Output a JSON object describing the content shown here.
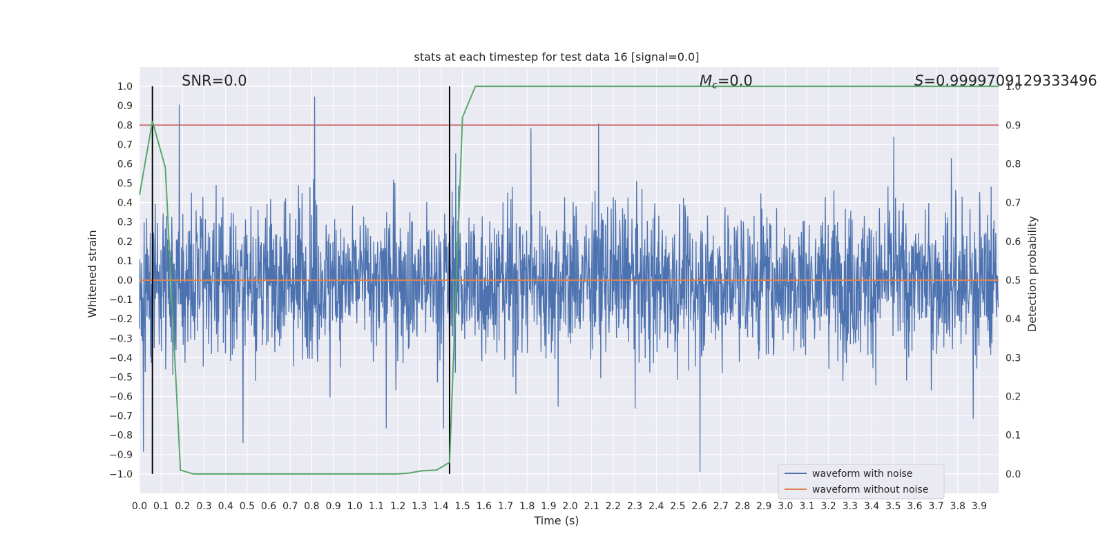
{
  "chart_data": {
    "type": "line",
    "title": "stats at each timestep for test data 16 [signal=0.0]",
    "xlabel": "Time (s)",
    "ylabel_left": "Whitened strain",
    "ylabel_right": "Detection probability",
    "xlim": [
      0.0,
      3.99
    ],
    "ylim_left": [
      -1.1,
      1.1
    ],
    "ylim_right": [
      -0.05,
      1.05
    ],
    "x_ticks": [
      "0.0",
      "0.1",
      "0.2",
      "0.3",
      "0.4",
      "0.5",
      "0.6",
      "0.7",
      "0.8",
      "0.9",
      "1.0",
      "1.1",
      "1.2",
      "1.3",
      "1.4",
      "1.5",
      "1.6",
      "1.7",
      "1.8",
      "1.9",
      "2.0",
      "2.1",
      "2.2",
      "2.3",
      "2.4",
      "2.5",
      "2.6",
      "2.7",
      "2.8",
      "2.9",
      "3.0",
      "3.1",
      "3.2",
      "3.3",
      "3.4",
      "3.5",
      "3.6",
      "3.7",
      "3.8",
      "3.9"
    ],
    "y_ticks_left": [
      "1.0",
      "0.9",
      "0.8",
      "0.7",
      "0.6",
      "0.5",
      "0.4",
      "0.3",
      "0.2",
      "0.1",
      "0.0",
      "−0.1",
      "−0.2",
      "−0.3",
      "−0.4",
      "−0.5",
      "−0.6",
      "−0.7",
      "−0.8",
      "−0.9",
      "−1.0"
    ],
    "y_ticks_right": [
      "1.0",
      "0.9",
      "0.8",
      "0.7",
      "0.6",
      "0.5",
      "0.4",
      "0.3",
      "0.2",
      "0.1",
      "0.0"
    ],
    "annotations": {
      "snr": "SNR=0.0",
      "mc_symbol": "M",
      "mc_sub": "c",
      "mc_value": "=0.0",
      "s_symbol": "S",
      "s_value": "=0.9999709129333496"
    },
    "threshold_probability": 0.9,
    "vertical_markers": [
      0.06,
      1.44
    ],
    "series": [
      {
        "name": "waveform with noise",
        "color": "#4c72b0",
        "axis": "left",
        "description": "noisy whitened strain sampled across 0-4 s, amplitude roughly within -1 to 1"
      },
      {
        "name": "waveform without noise",
        "color": "#dd8452",
        "axis": "left",
        "x": [
          0.0,
          3.99
        ],
        "y": [
          0.0,
          0.0
        ]
      },
      {
        "name": "detection probability",
        "color": "#55a868",
        "axis": "right",
        "x": [
          0.0,
          0.06,
          0.12,
          0.19,
          0.25,
          0.31,
          0.38,
          0.44,
          0.5,
          0.56,
          0.62,
          0.69,
          0.75,
          0.81,
          0.88,
          0.94,
          1.0,
          1.06,
          1.12,
          1.19,
          1.25,
          1.31,
          1.38,
          1.44,
          1.5,
          1.56,
          1.62,
          2.0,
          2.5,
          3.0,
          3.5,
          3.99
        ],
        "y": [
          0.72,
          0.91,
          0.79,
          0.01,
          0.0,
          0.0,
          0.0,
          0.0,
          0.0,
          0.0,
          0.0,
          0.0,
          0.0,
          0.0,
          0.0,
          0.0,
          0.0,
          0.0,
          0.0,
          0.0,
          0.002,
          0.008,
          0.01,
          0.03,
          0.92,
          1.0,
          1.0,
          1.0,
          1.0,
          1.0,
          1.0,
          1.0
        ]
      }
    ],
    "legend": [
      "waveform with noise",
      "waveform without noise"
    ],
    "colors": {
      "background": "#eaeaf2",
      "grid": "#ffffff",
      "threshold": "#c44e52",
      "marker": "#000000"
    }
  }
}
